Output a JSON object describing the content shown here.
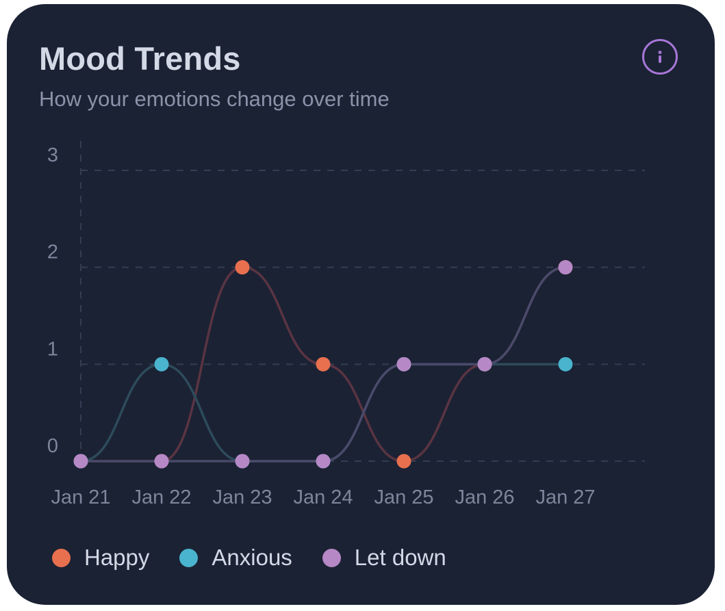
{
  "header": {
    "title": "Mood Trends",
    "subtitle": "How your emotions change over time",
    "info_icon": "info-icon"
  },
  "colors": {
    "card_background": "#1b2234",
    "grid": "#343d52",
    "tick_label": "#7d869b",
    "info_accent": "#a877d8"
  },
  "chart_data": {
    "type": "line",
    "categories": [
      "Jan 21",
      "Jan 22",
      "Jan 23",
      "Jan 24",
      "Jan 25",
      "Jan 26",
      "Jan 27"
    ],
    "ylim": [
      0,
      3
    ],
    "yticks": [
      "0",
      "1",
      "2",
      "3"
    ],
    "grid": true,
    "curve": "smooth",
    "legend_position": "bottom-left",
    "series": [
      {
        "name": "Happy",
        "color": "#e8704f",
        "line_color": "#5a3442",
        "values": [
          0,
          0,
          2,
          1,
          0,
          1,
          2
        ]
      },
      {
        "name": "Anxious",
        "color": "#4ab3cd",
        "line_color": "#2d4b5b",
        "values": [
          0,
          1,
          0,
          0,
          1,
          1,
          1
        ]
      },
      {
        "name": "Let down",
        "color": "#b688c6",
        "line_color": "#4a4a6a",
        "values": [
          0,
          0,
          0,
          0,
          1,
          1,
          2
        ]
      }
    ]
  },
  "legend": [
    {
      "label": "Happy",
      "color": "#e8704f"
    },
    {
      "label": "Anxious",
      "color": "#4ab3cd"
    },
    {
      "label": "Let down",
      "color": "#b688c6"
    }
  ]
}
